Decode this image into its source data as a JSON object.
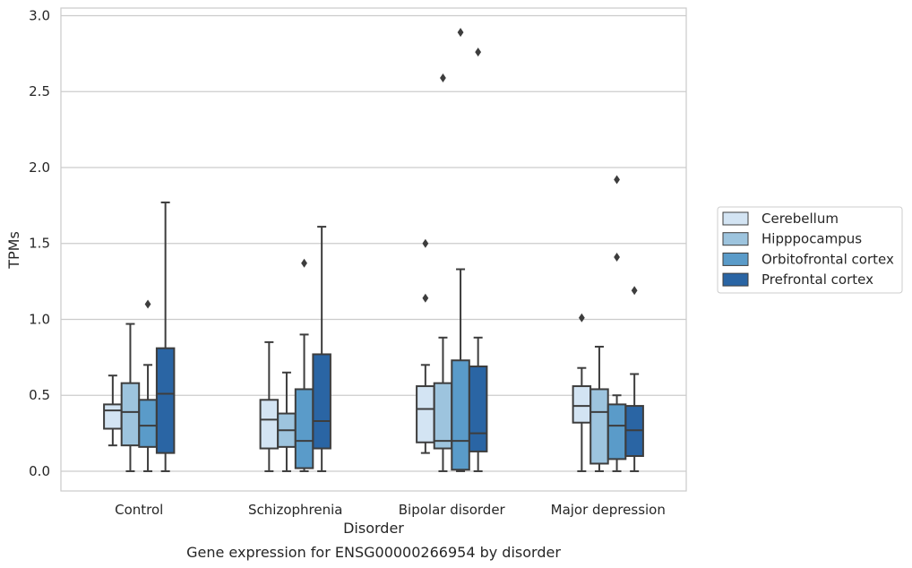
{
  "chart_data": {
    "type": "box",
    "title": "Gene expression for ENSG00000266954 by disorder",
    "xlabel": "Disorder",
    "ylabel": "TPMs",
    "ylim": [
      -0.13,
      3.05
    ],
    "yticks": [
      "0.0",
      "0.5",
      "1.0",
      "1.5",
      "2.0",
      "2.5",
      "3.0"
    ],
    "grid": "horizontal",
    "legend_position": "right",
    "categories": [
      "Control",
      "Schizophrenia",
      "Bipolar disorder",
      "Major depression"
    ],
    "series": [
      {
        "name": "Cerebellum",
        "color": "#d3e4f3",
        "boxes": [
          {
            "whislo": 0.17,
            "q1": 0.28,
            "med": 0.4,
            "q3": 0.44,
            "whishi": 0.63,
            "fliers": []
          },
          {
            "whislo": 0.0,
            "q1": 0.15,
            "med": 0.34,
            "q3": 0.47,
            "whishi": 0.85,
            "fliers": []
          },
          {
            "whislo": 0.12,
            "q1": 0.19,
            "med": 0.41,
            "q3": 0.56,
            "whishi": 0.7,
            "fliers": [
              1.14,
              1.5
            ]
          },
          {
            "whislo": 0.0,
            "q1": 0.32,
            "med": 0.43,
            "q3": 0.56,
            "whishi": 0.68,
            "fliers": [
              1.01
            ]
          }
        ]
      },
      {
        "name": "Hipppocampus",
        "color": "#9dc4de",
        "boxes": [
          {
            "whislo": 0.0,
            "q1": 0.17,
            "med": 0.39,
            "q3": 0.58,
            "whishi": 0.97,
            "fliers": []
          },
          {
            "whislo": 0.0,
            "q1": 0.16,
            "med": 0.27,
            "q3": 0.38,
            "whishi": 0.65,
            "fliers": []
          },
          {
            "whislo": 0.0,
            "q1": 0.15,
            "med": 0.2,
            "q3": 0.58,
            "whishi": 0.88,
            "fliers": [
              2.59
            ]
          },
          {
            "whislo": 0.0,
            "q1": 0.05,
            "med": 0.39,
            "q3": 0.54,
            "whishi": 0.82,
            "fliers": []
          }
        ]
      },
      {
        "name": "Orbitofrontal cortex",
        "color": "#5a9bc9",
        "boxes": [
          {
            "whislo": 0.0,
            "q1": 0.16,
            "med": 0.3,
            "q3": 0.47,
            "whishi": 0.7,
            "fliers": [
              1.1
            ]
          },
          {
            "whislo": 0.0,
            "q1": 0.02,
            "med": 0.2,
            "q3": 0.54,
            "whishi": 0.9,
            "fliers": [
              1.37
            ]
          },
          {
            "whislo": 0.0,
            "q1": 0.01,
            "med": 0.2,
            "q3": 0.73,
            "whishi": 1.33,
            "fliers": [
              2.89
            ]
          },
          {
            "whislo": 0.0,
            "q1": 0.08,
            "med": 0.3,
            "q3": 0.44,
            "whishi": 0.5,
            "fliers": [
              1.41,
              1.92
            ]
          }
        ]
      },
      {
        "name": "Prefrontal cortex",
        "color": "#2a65a4",
        "boxes": [
          {
            "whislo": 0.0,
            "q1": 0.12,
            "med": 0.51,
            "q3": 0.81,
            "whishi": 1.77,
            "fliers": []
          },
          {
            "whislo": 0.0,
            "q1": 0.15,
            "med": 0.33,
            "q3": 0.77,
            "whishi": 1.61,
            "fliers": []
          },
          {
            "whislo": 0.0,
            "q1": 0.13,
            "med": 0.25,
            "q3": 0.69,
            "whishi": 0.88,
            "fliers": [
              2.76
            ]
          },
          {
            "whislo": 0.0,
            "q1": 0.1,
            "med": 0.27,
            "q3": 0.43,
            "whishi": 0.64,
            "fliers": [
              1.19
            ]
          }
        ]
      }
    ]
  }
}
